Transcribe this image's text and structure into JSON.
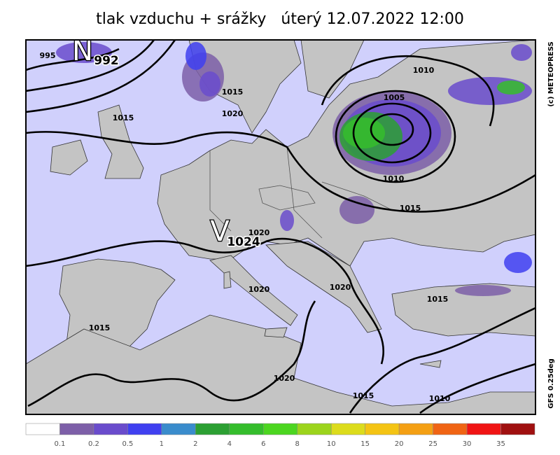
{
  "title": "tlak vzduchu + srážky   úterý 12.07.2022 12:00",
  "copyright": "(c) METEOPRESS",
  "model": "GFS 0.25deg",
  "pressure_centers": [
    {
      "symbol": "N",
      "value": "992"
    },
    {
      "symbol": "V",
      "value": "1024"
    }
  ],
  "isobar_labels": [
    "995",
    "1015",
    "1015",
    "1020",
    "1005",
    "1010",
    "1010",
    "1015",
    "1020",
    "1020",
    "1020",
    "1015",
    "1020",
    "1015",
    "1015",
    "1010"
  ],
  "colorbar": {
    "colors": [
      "#ffffff",
      "#7d5fa8",
      "#6a4ccc",
      "#4040f0",
      "#3a8ccc",
      "#2ca033",
      "#35bd2c",
      "#4cd620",
      "#9cd41c",
      "#dcdc1c",
      "#f4c414",
      "#f4a014",
      "#f06414",
      "#f01414",
      "#a01010"
    ],
    "ticks": [
      0.1,
      0.2,
      0.5,
      1,
      2,
      4,
      6,
      8,
      10,
      15,
      20,
      25,
      30,
      35
    ]
  }
}
